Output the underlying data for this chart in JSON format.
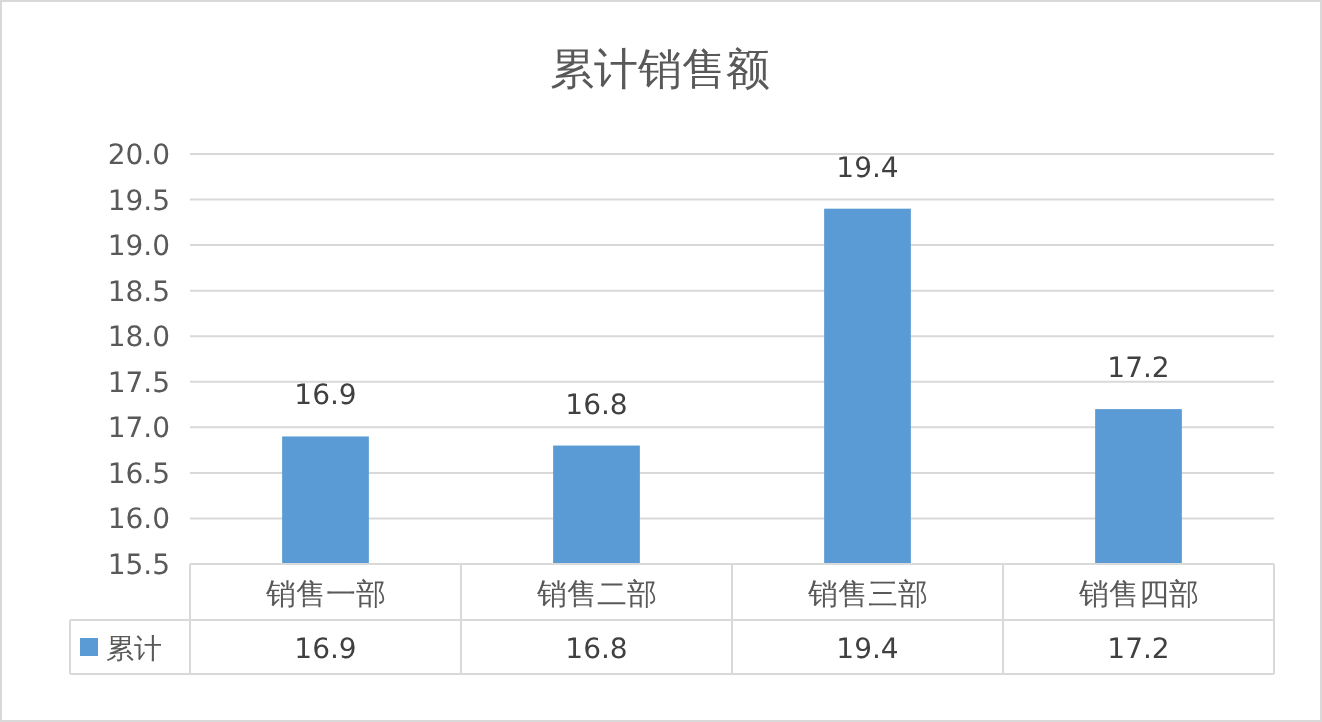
{
  "chart_data": {
    "type": "bar",
    "title": "累计销售额",
    "categories": [
      "销售一部",
      "销售二部",
      "销售三部",
      "销售四部"
    ],
    "series": [
      {
        "name": "累计",
        "color": "#5b9bd5",
        "values": [
          16.9,
          16.8,
          19.4,
          17.2
        ],
        "value_labels": [
          "16.9",
          "16.8",
          "19.4",
          "17.2"
        ]
      }
    ],
    "ylim": [
      15.5,
      20
    ],
    "yticks": [
      {
        "value": 15.5,
        "label": "15.5"
      },
      {
        "value": 16,
        "label": "16.0"
      },
      {
        "value": 16.5,
        "label": "16.5"
      },
      {
        "value": 17,
        "label": "17.0"
      },
      {
        "value": 17.5,
        "label": "17.5"
      },
      {
        "value": 18,
        "label": "18.0"
      },
      {
        "value": 18.5,
        "label": "18.5"
      },
      {
        "value": 19,
        "label": "19.0"
      },
      {
        "value": 19.5,
        "label": "19.5"
      },
      {
        "value": 20,
        "label": "20.0"
      }
    ],
    "annotations": [
      "16.9",
      "16.8",
      "19.4",
      "17.2"
    ],
    "grid": "y",
    "legend": "bottom",
    "data_labels": true
  }
}
